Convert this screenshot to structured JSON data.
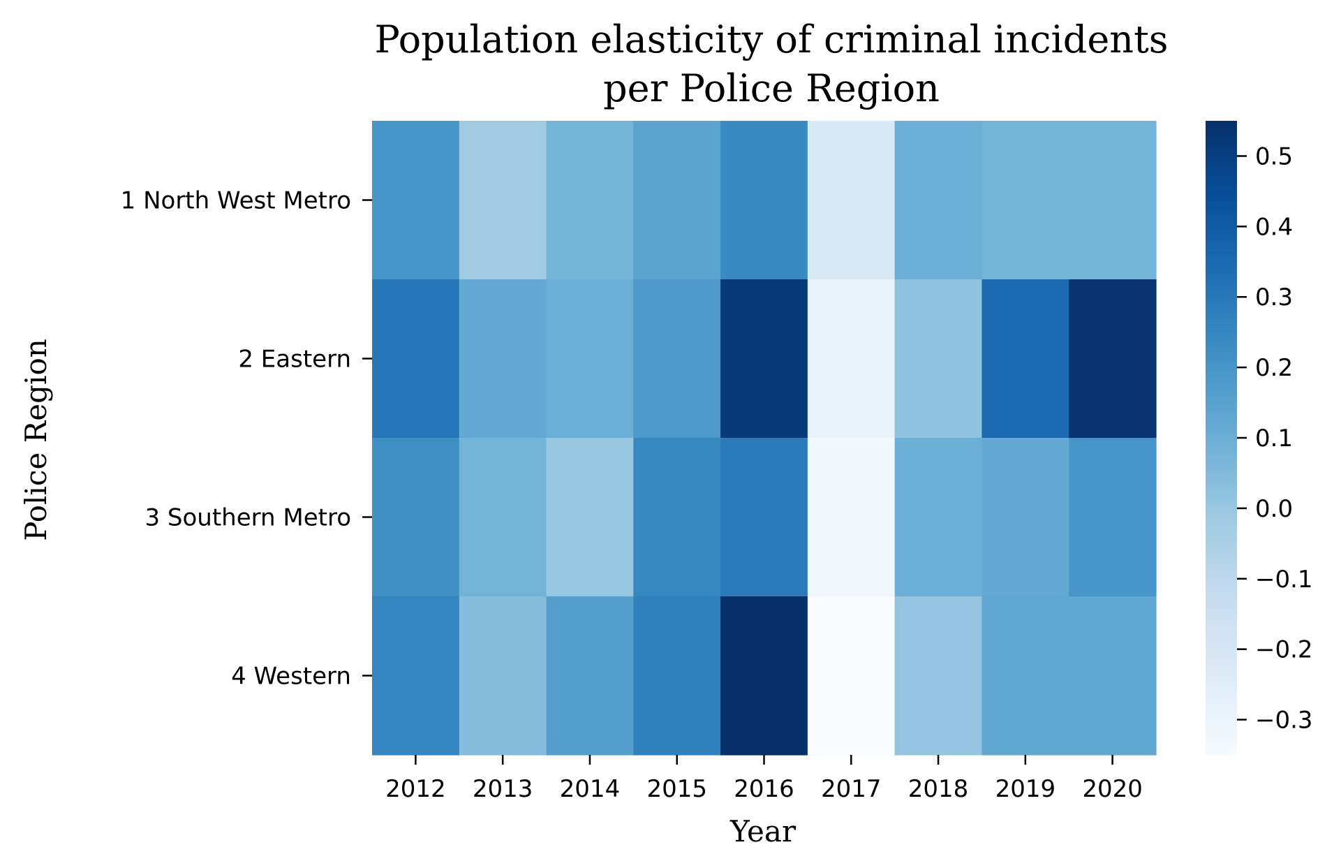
{
  "chart_data": {
    "type": "heatmap",
    "title": [
      "Population elasticity of criminal incidents",
      "per Police Region"
    ],
    "xlabel": "Year",
    "ylabel": "Police Region",
    "x_categories": [
      "2012",
      "2013",
      "2014",
      "2015",
      "2016",
      "2017",
      "2018",
      "2019",
      "2020"
    ],
    "y_categories": [
      "1 North West Metro",
      "2 Eastern",
      "3 Southern Metro",
      "4 Western"
    ],
    "values": [
      [
        0.2,
        -0.02,
        0.08,
        0.14,
        0.24,
        -0.22,
        0.1,
        0.08,
        0.08
      ],
      [
        0.31,
        0.12,
        0.1,
        0.18,
        0.52,
        -0.28,
        0.02,
        0.35,
        0.54
      ],
      [
        0.22,
        0.08,
        0.0,
        0.25,
        0.29,
        -0.32,
        0.1,
        0.12,
        0.2
      ],
      [
        0.26,
        0.04,
        0.16,
        0.27,
        0.55,
        -0.35,
        0.01,
        0.13,
        0.13
      ]
    ],
    "colormap": "Blues",
    "vmin": -0.35,
    "vmax": 0.55,
    "colorbar_ticks": [
      "0.5",
      "0.4",
      "0.3",
      "0.2",
      "0.1",
      "0.0",
      "−0.1",
      "−0.2",
      "−0.3"
    ],
    "colorbar_tick_values": [
      0.5,
      0.4,
      0.3,
      0.2,
      0.1,
      0.0,
      -0.1,
      -0.2,
      -0.3
    ]
  }
}
